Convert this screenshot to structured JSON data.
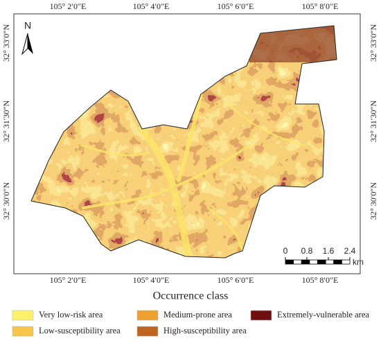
{
  "map": {
    "north_label": "N",
    "top_lon_labels": [
      "105° 2′0″E",
      "105° 4′0″E",
      "105° 6′0″E",
      "105° 8′0″E"
    ],
    "bottom_lon_labels": [
      "105° 2′0″E",
      "105° 4′0″E",
      "105° 6′0″E",
      "105° 8′0″E"
    ],
    "left_lat_labels": [
      "32° 33′0″N",
      "32° 31′30″N",
      "32° 30′0″N"
    ],
    "right_lat_labels": [
      "32° 33′0″N",
      "32° 31′30″N",
      "32° 30′0″N"
    ],
    "scale_bar": {
      "ticks": [
        0,
        0.8,
        1.6,
        2.4
      ],
      "unit": "km"
    }
  },
  "legend": {
    "title": "Occurrence class",
    "items": [
      {
        "label": "Very low-risk area",
        "color": "#fdf06a"
      },
      {
        "label": "Low-susceptibility area",
        "color": "#f5c64a"
      },
      {
        "label": "Medium-prone area",
        "color": "#eda031"
      },
      {
        "label": "High-susceptibility area",
        "color": "#bf6420"
      },
      {
        "label": "Extremely-vulnerable area",
        "color": "#6e0e0e"
      }
    ]
  }
}
